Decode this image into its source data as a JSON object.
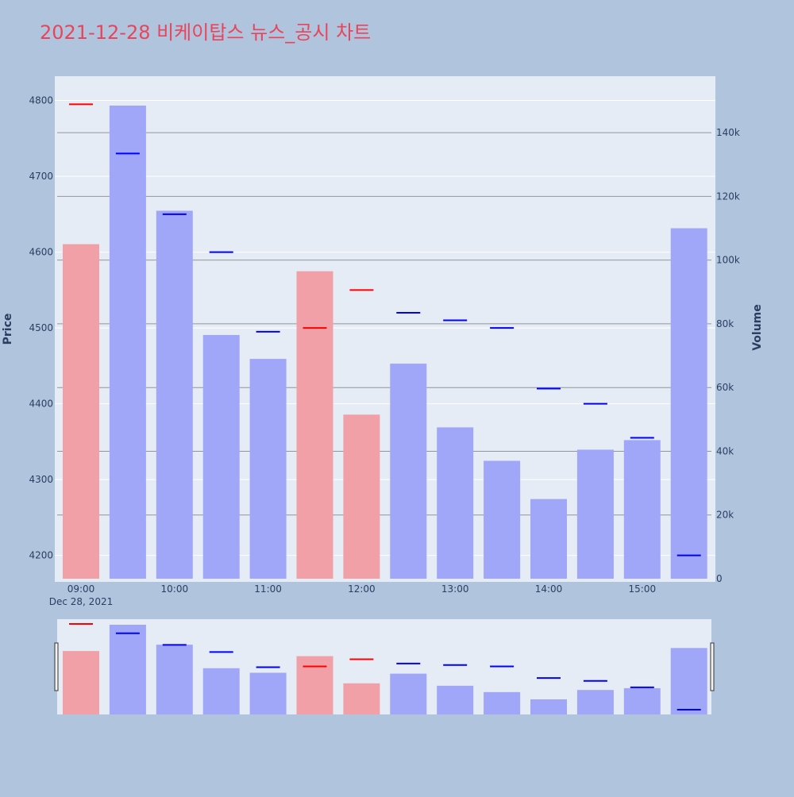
{
  "title": "2021-12-28 비케이탑스 뉴스_공시 차트",
  "colors": {
    "page_bg": "#b0c4de",
    "plot_bg": "#e5ecf6",
    "title": "#e8455b",
    "volume_up": "#f0a0a6",
    "volume_down": "#a0a6f8",
    "tick_up": "#ff0000",
    "tick_down": "#0000ff",
    "axis_text": "#2a3f5f",
    "secondary_grid": "#7f7f7f"
  },
  "chart_data": {
    "type": "bar",
    "description_of_marks": "OHLC-style close ticks (price, left axis) overlaid on volume bars (right axis), with range slider below",
    "title": "2021-12-28 비케이탑스 뉴스_공시 차트",
    "date_label": "Dec 28, 2021",
    "x": [
      "09:00",
      "09:30",
      "10:00",
      "10:30",
      "11:00",
      "11:30",
      "12:00",
      "12:30",
      "13:00",
      "13:30",
      "14:00",
      "14:30",
      "15:00",
      "15:30"
    ],
    "x_tick_labels": [
      "09:00",
      "10:00",
      "11:00",
      "12:00",
      "13:00",
      "14:00",
      "15:00"
    ],
    "x_tick_positions": [
      "09:00",
      "10:00",
      "11:00",
      "12:00",
      "13:00",
      "14:00",
      "15:00"
    ],
    "y_price": {
      "label": "Price",
      "range": [
        4165,
        4832
      ],
      "ticks": [
        4200,
        4300,
        4400,
        4500,
        4600,
        4700,
        4800
      ],
      "tick_labels": [
        "4200",
        "4300",
        "4400",
        "4500",
        "4600",
        "4700",
        "4800"
      ]
    },
    "y_volume": {
      "label": "Volume",
      "range": [
        0,
        150000
      ],
      "ticks": [
        0,
        20000,
        40000,
        60000,
        80000,
        100000,
        120000,
        140000
      ],
      "tick_labels": [
        "0",
        "20k",
        "40k",
        "60k",
        "80k",
        "100k",
        "120k",
        "140k"
      ]
    },
    "series": [
      {
        "name": "Price",
        "values": [
          4795,
          4730,
          4650,
          4600,
          4495,
          4500,
          4550,
          4520,
          4510,
          4500,
          4420,
          4400,
          4355,
          4200
        ],
        "direction": [
          "up",
          "down",
          "down",
          "down",
          "down",
          "up",
          "up",
          "down",
          "down",
          "down",
          "down",
          "down",
          "down",
          "down"
        ]
      },
      {
        "name": "Volume",
        "values": [
          105000,
          148500,
          115500,
          76500,
          69000,
          96500,
          51500,
          67500,
          47500,
          37000,
          25000,
          40500,
          43500,
          110000
        ]
      }
    ]
  }
}
